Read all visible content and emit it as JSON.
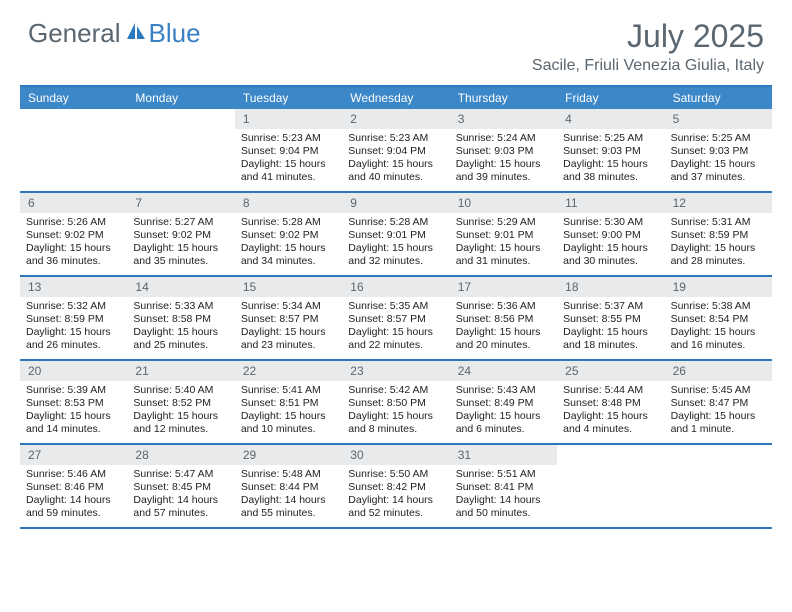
{
  "logo": {
    "text1": "General",
    "text2": "Blue"
  },
  "title": "July 2025",
  "location": "Sacile, Friuli Venezia Giulia, Italy",
  "colors": {
    "header_bar": "#3b87c8",
    "header_border": "#2b7ac0",
    "daynum_bg": "#e9eaeb",
    "text_gray": "#5a6670",
    "logo_blue": "#3b7fc4"
  },
  "weekdays": [
    "Sunday",
    "Monday",
    "Tuesday",
    "Wednesday",
    "Thursday",
    "Friday",
    "Saturday"
  ],
  "weeks": [
    [
      {
        "n": "",
        "sr": "",
        "ss": "",
        "dl": ""
      },
      {
        "n": "",
        "sr": "",
        "ss": "",
        "dl": ""
      },
      {
        "n": "1",
        "sr": "Sunrise: 5:23 AM",
        "ss": "Sunset: 9:04 PM",
        "dl": "Daylight: 15 hours and 41 minutes."
      },
      {
        "n": "2",
        "sr": "Sunrise: 5:23 AM",
        "ss": "Sunset: 9:04 PM",
        "dl": "Daylight: 15 hours and 40 minutes."
      },
      {
        "n": "3",
        "sr": "Sunrise: 5:24 AM",
        "ss": "Sunset: 9:03 PM",
        "dl": "Daylight: 15 hours and 39 minutes."
      },
      {
        "n": "4",
        "sr": "Sunrise: 5:25 AM",
        "ss": "Sunset: 9:03 PM",
        "dl": "Daylight: 15 hours and 38 minutes."
      },
      {
        "n": "5",
        "sr": "Sunrise: 5:25 AM",
        "ss": "Sunset: 9:03 PM",
        "dl": "Daylight: 15 hours and 37 minutes."
      }
    ],
    [
      {
        "n": "6",
        "sr": "Sunrise: 5:26 AM",
        "ss": "Sunset: 9:02 PM",
        "dl": "Daylight: 15 hours and 36 minutes."
      },
      {
        "n": "7",
        "sr": "Sunrise: 5:27 AM",
        "ss": "Sunset: 9:02 PM",
        "dl": "Daylight: 15 hours and 35 minutes."
      },
      {
        "n": "8",
        "sr": "Sunrise: 5:28 AM",
        "ss": "Sunset: 9:02 PM",
        "dl": "Daylight: 15 hours and 34 minutes."
      },
      {
        "n": "9",
        "sr": "Sunrise: 5:28 AM",
        "ss": "Sunset: 9:01 PM",
        "dl": "Daylight: 15 hours and 32 minutes."
      },
      {
        "n": "10",
        "sr": "Sunrise: 5:29 AM",
        "ss": "Sunset: 9:01 PM",
        "dl": "Daylight: 15 hours and 31 minutes."
      },
      {
        "n": "11",
        "sr": "Sunrise: 5:30 AM",
        "ss": "Sunset: 9:00 PM",
        "dl": "Daylight: 15 hours and 30 minutes."
      },
      {
        "n": "12",
        "sr": "Sunrise: 5:31 AM",
        "ss": "Sunset: 8:59 PM",
        "dl": "Daylight: 15 hours and 28 minutes."
      }
    ],
    [
      {
        "n": "13",
        "sr": "Sunrise: 5:32 AM",
        "ss": "Sunset: 8:59 PM",
        "dl": "Daylight: 15 hours and 26 minutes."
      },
      {
        "n": "14",
        "sr": "Sunrise: 5:33 AM",
        "ss": "Sunset: 8:58 PM",
        "dl": "Daylight: 15 hours and 25 minutes."
      },
      {
        "n": "15",
        "sr": "Sunrise: 5:34 AM",
        "ss": "Sunset: 8:57 PM",
        "dl": "Daylight: 15 hours and 23 minutes."
      },
      {
        "n": "16",
        "sr": "Sunrise: 5:35 AM",
        "ss": "Sunset: 8:57 PM",
        "dl": "Daylight: 15 hours and 22 minutes."
      },
      {
        "n": "17",
        "sr": "Sunrise: 5:36 AM",
        "ss": "Sunset: 8:56 PM",
        "dl": "Daylight: 15 hours and 20 minutes."
      },
      {
        "n": "18",
        "sr": "Sunrise: 5:37 AM",
        "ss": "Sunset: 8:55 PM",
        "dl": "Daylight: 15 hours and 18 minutes."
      },
      {
        "n": "19",
        "sr": "Sunrise: 5:38 AM",
        "ss": "Sunset: 8:54 PM",
        "dl": "Daylight: 15 hours and 16 minutes."
      }
    ],
    [
      {
        "n": "20",
        "sr": "Sunrise: 5:39 AM",
        "ss": "Sunset: 8:53 PM",
        "dl": "Daylight: 15 hours and 14 minutes."
      },
      {
        "n": "21",
        "sr": "Sunrise: 5:40 AM",
        "ss": "Sunset: 8:52 PM",
        "dl": "Daylight: 15 hours and 12 minutes."
      },
      {
        "n": "22",
        "sr": "Sunrise: 5:41 AM",
        "ss": "Sunset: 8:51 PM",
        "dl": "Daylight: 15 hours and 10 minutes."
      },
      {
        "n": "23",
        "sr": "Sunrise: 5:42 AM",
        "ss": "Sunset: 8:50 PM",
        "dl": "Daylight: 15 hours and 8 minutes."
      },
      {
        "n": "24",
        "sr": "Sunrise: 5:43 AM",
        "ss": "Sunset: 8:49 PM",
        "dl": "Daylight: 15 hours and 6 minutes."
      },
      {
        "n": "25",
        "sr": "Sunrise: 5:44 AM",
        "ss": "Sunset: 8:48 PM",
        "dl": "Daylight: 15 hours and 4 minutes."
      },
      {
        "n": "26",
        "sr": "Sunrise: 5:45 AM",
        "ss": "Sunset: 8:47 PM",
        "dl": "Daylight: 15 hours and 1 minute."
      }
    ],
    [
      {
        "n": "27",
        "sr": "Sunrise: 5:46 AM",
        "ss": "Sunset: 8:46 PM",
        "dl": "Daylight: 14 hours and 59 minutes."
      },
      {
        "n": "28",
        "sr": "Sunrise: 5:47 AM",
        "ss": "Sunset: 8:45 PM",
        "dl": "Daylight: 14 hours and 57 minutes."
      },
      {
        "n": "29",
        "sr": "Sunrise: 5:48 AM",
        "ss": "Sunset: 8:44 PM",
        "dl": "Daylight: 14 hours and 55 minutes."
      },
      {
        "n": "30",
        "sr": "Sunrise: 5:50 AM",
        "ss": "Sunset: 8:42 PM",
        "dl": "Daylight: 14 hours and 52 minutes."
      },
      {
        "n": "31",
        "sr": "Sunrise: 5:51 AM",
        "ss": "Sunset: 8:41 PM",
        "dl": "Daylight: 14 hours and 50 minutes."
      },
      {
        "n": "",
        "sr": "",
        "ss": "",
        "dl": ""
      },
      {
        "n": "",
        "sr": "",
        "ss": "",
        "dl": ""
      }
    ]
  ]
}
